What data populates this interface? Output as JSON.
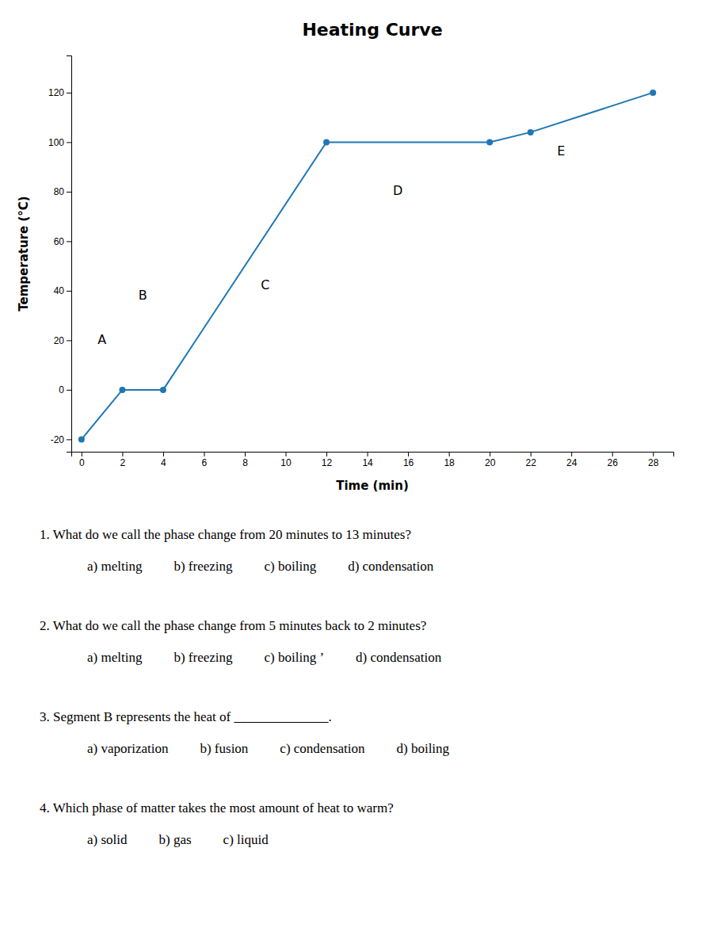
{
  "chart_data": {
    "type": "line",
    "title": "Heating Curve",
    "x_label": "Time (min)",
    "y_label": "Temperature (°C)",
    "x": [
      0,
      2,
      4,
      12,
      20,
      22,
      28
    ],
    "values": [
      -20,
      0,
      0,
      100,
      100,
      104,
      120
    ],
    "marker": "circle",
    "annotations": [
      {
        "text": "A",
        "x": 1.0,
        "y": 20
      },
      {
        "text": "B",
        "x": 3.0,
        "y": 38
      },
      {
        "text": "C",
        "x": 9.0,
        "y": 42
      },
      {
        "text": "D",
        "x": 15.5,
        "y": 80
      },
      {
        "text": "E",
        "x": 23.5,
        "y": 96
      }
    ],
    "xlim": [
      -0.5,
      29
    ],
    "ylim": [
      -25,
      135
    ],
    "xticks": [
      0,
      2,
      4,
      6,
      8,
      10,
      12,
      14,
      16,
      18,
      20,
      22,
      24,
      26,
      28
    ],
    "yticks": [
      -20,
      0,
      20,
      40,
      60,
      80,
      100,
      120
    ],
    "grid": false
  },
  "questions": [
    {
      "text": "1. What do we call the phase change from 20 minutes to 13 minutes?",
      "options": [
        "a) melting",
        "b) freezing",
        "c) boiling",
        "d) condensation"
      ]
    },
    {
      "text": "2. What do we call the phase change from 5 minutes back to 2 minutes?",
      "options": [
        "a) melting",
        "b) freezing",
        "c) boiling ’",
        "d) condensation"
      ]
    },
    {
      "text": "3. Segment B represents the heat of ______________.",
      "options": [
        "a) vaporization",
        "b) fusion",
        "c) condensation",
        "d) boiling"
      ]
    },
    {
      "text": "4. Which phase of matter takes the most amount of heat to warm?",
      "options": [
        "a) solid",
        "b) gas",
        "c) liquid"
      ]
    }
  ]
}
